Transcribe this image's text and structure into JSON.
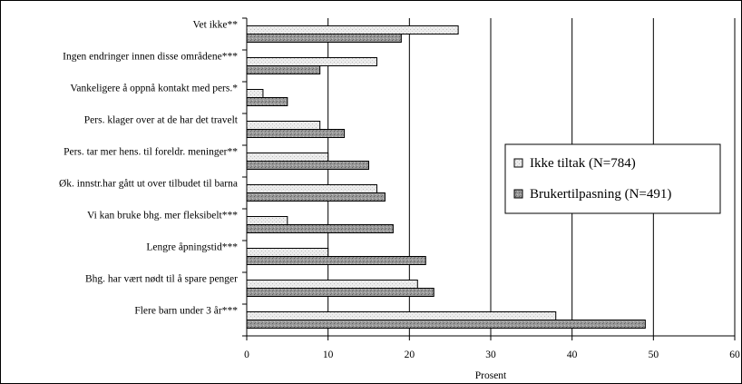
{
  "chart_data": {
    "type": "bar",
    "orientation": "horizontal",
    "xlabel": "Prosent",
    "xlim": [
      0,
      60
    ],
    "xticks": [
      0,
      10,
      20,
      30,
      40,
      50,
      60
    ],
    "grid": "vertical",
    "legend_position": "right",
    "categories": [
      "Vet ikke**",
      "Ingen endringer innen disse områdene***",
      "Vankeligere å oppnå kontakt med pers.*",
      "Pers. klager over at de har det travelt",
      "Pers. tar mer hens. til foreldr. meninger**",
      "Øk. innstr.har gått ut over tilbudet til barna",
      "Vi kan bruke bhg. mer fleksibelt***",
      "Lengre åpningstid***",
      "Bhg. har vært nødt til å spare penger",
      "Flere barn under 3 år***"
    ],
    "series": [
      {
        "name": "Ikke tiltak (N=784)",
        "color": "#e8e8e8",
        "values": [
          26,
          16,
          2,
          9,
          10,
          16,
          5,
          10,
          21,
          38
        ]
      },
      {
        "name": "Brukertilpasning (N=491)",
        "color": "#8c8c8c",
        "values": [
          19,
          9,
          5,
          12,
          15,
          17,
          18,
          22,
          23,
          49
        ]
      }
    ]
  }
}
